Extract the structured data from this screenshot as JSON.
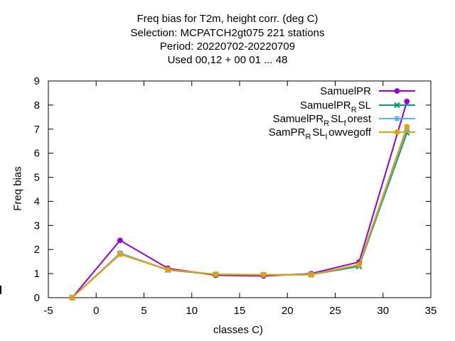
{
  "chart_data": {
    "type": "line",
    "title_lines": [
      "Freq bias  for T2m, height corr. (deg C)",
      "Selection: MCPATCH2gt075    221 stations",
      "Period: 20220702-20220709",
      "Used  00,12  + 00 01 ... 48"
    ],
    "xlabel": "classes C)",
    "ylabel": "Freq bias",
    "xlim": [
      -5,
      35
    ],
    "ylim": [
      0,
      9
    ],
    "xticks": [
      "-5",
      "0",
      "5",
      "10",
      "15",
      "20",
      "25",
      "30",
      "35"
    ],
    "yticks": [
      "0",
      "1",
      "2",
      "3",
      "4",
      "5",
      "6",
      "7",
      "8",
      "9"
    ],
    "grid": false,
    "legend_position": "top-right",
    "x": [
      -2.5,
      2.5,
      7.5,
      12.5,
      17.5,
      22.5,
      27.5,
      32.5
    ],
    "series": [
      {
        "name": "SamuelPR",
        "name_main": "SamuelPR",
        "name_parts": [],
        "color": "#9400d3",
        "marker": "filled-circle",
        "values": [
          0.0,
          2.38,
          1.22,
          0.93,
          0.9,
          1.0,
          1.48,
          8.15
        ]
      },
      {
        "name": "SamuelPR_RSL",
        "name_main": "SamuelPR",
        "name_parts": [
          [
            "R",
            "SL"
          ]
        ],
        "color": "#009e73",
        "marker": "x-cross",
        "values": [
          0.0,
          1.83,
          1.15,
          0.96,
          0.94,
          0.96,
          1.3,
          6.85
        ]
      },
      {
        "name": "SamuelPR_RSL_forest",
        "name_main": "SamuelPR",
        "name_parts": [
          [
            "R",
            "SL"
          ],
          [
            "f",
            "orest"
          ]
        ],
        "color": "#56b4e9",
        "marker": "star",
        "values": [
          0.0,
          1.85,
          1.16,
          0.97,
          0.95,
          0.97,
          1.35,
          7.0
        ]
      },
      {
        "name": "SamPR_RSL_lowvegoff",
        "name_main": "SamPR",
        "name_parts": [
          [
            "R",
            "SL"
          ],
          [
            "l",
            "owvegoff"
          ]
        ],
        "color": "#e69f00",
        "marker": "filled-circle",
        "values": [
          0.0,
          1.8,
          1.17,
          0.97,
          0.95,
          0.95,
          1.37,
          7.1
        ]
      }
    ]
  }
}
